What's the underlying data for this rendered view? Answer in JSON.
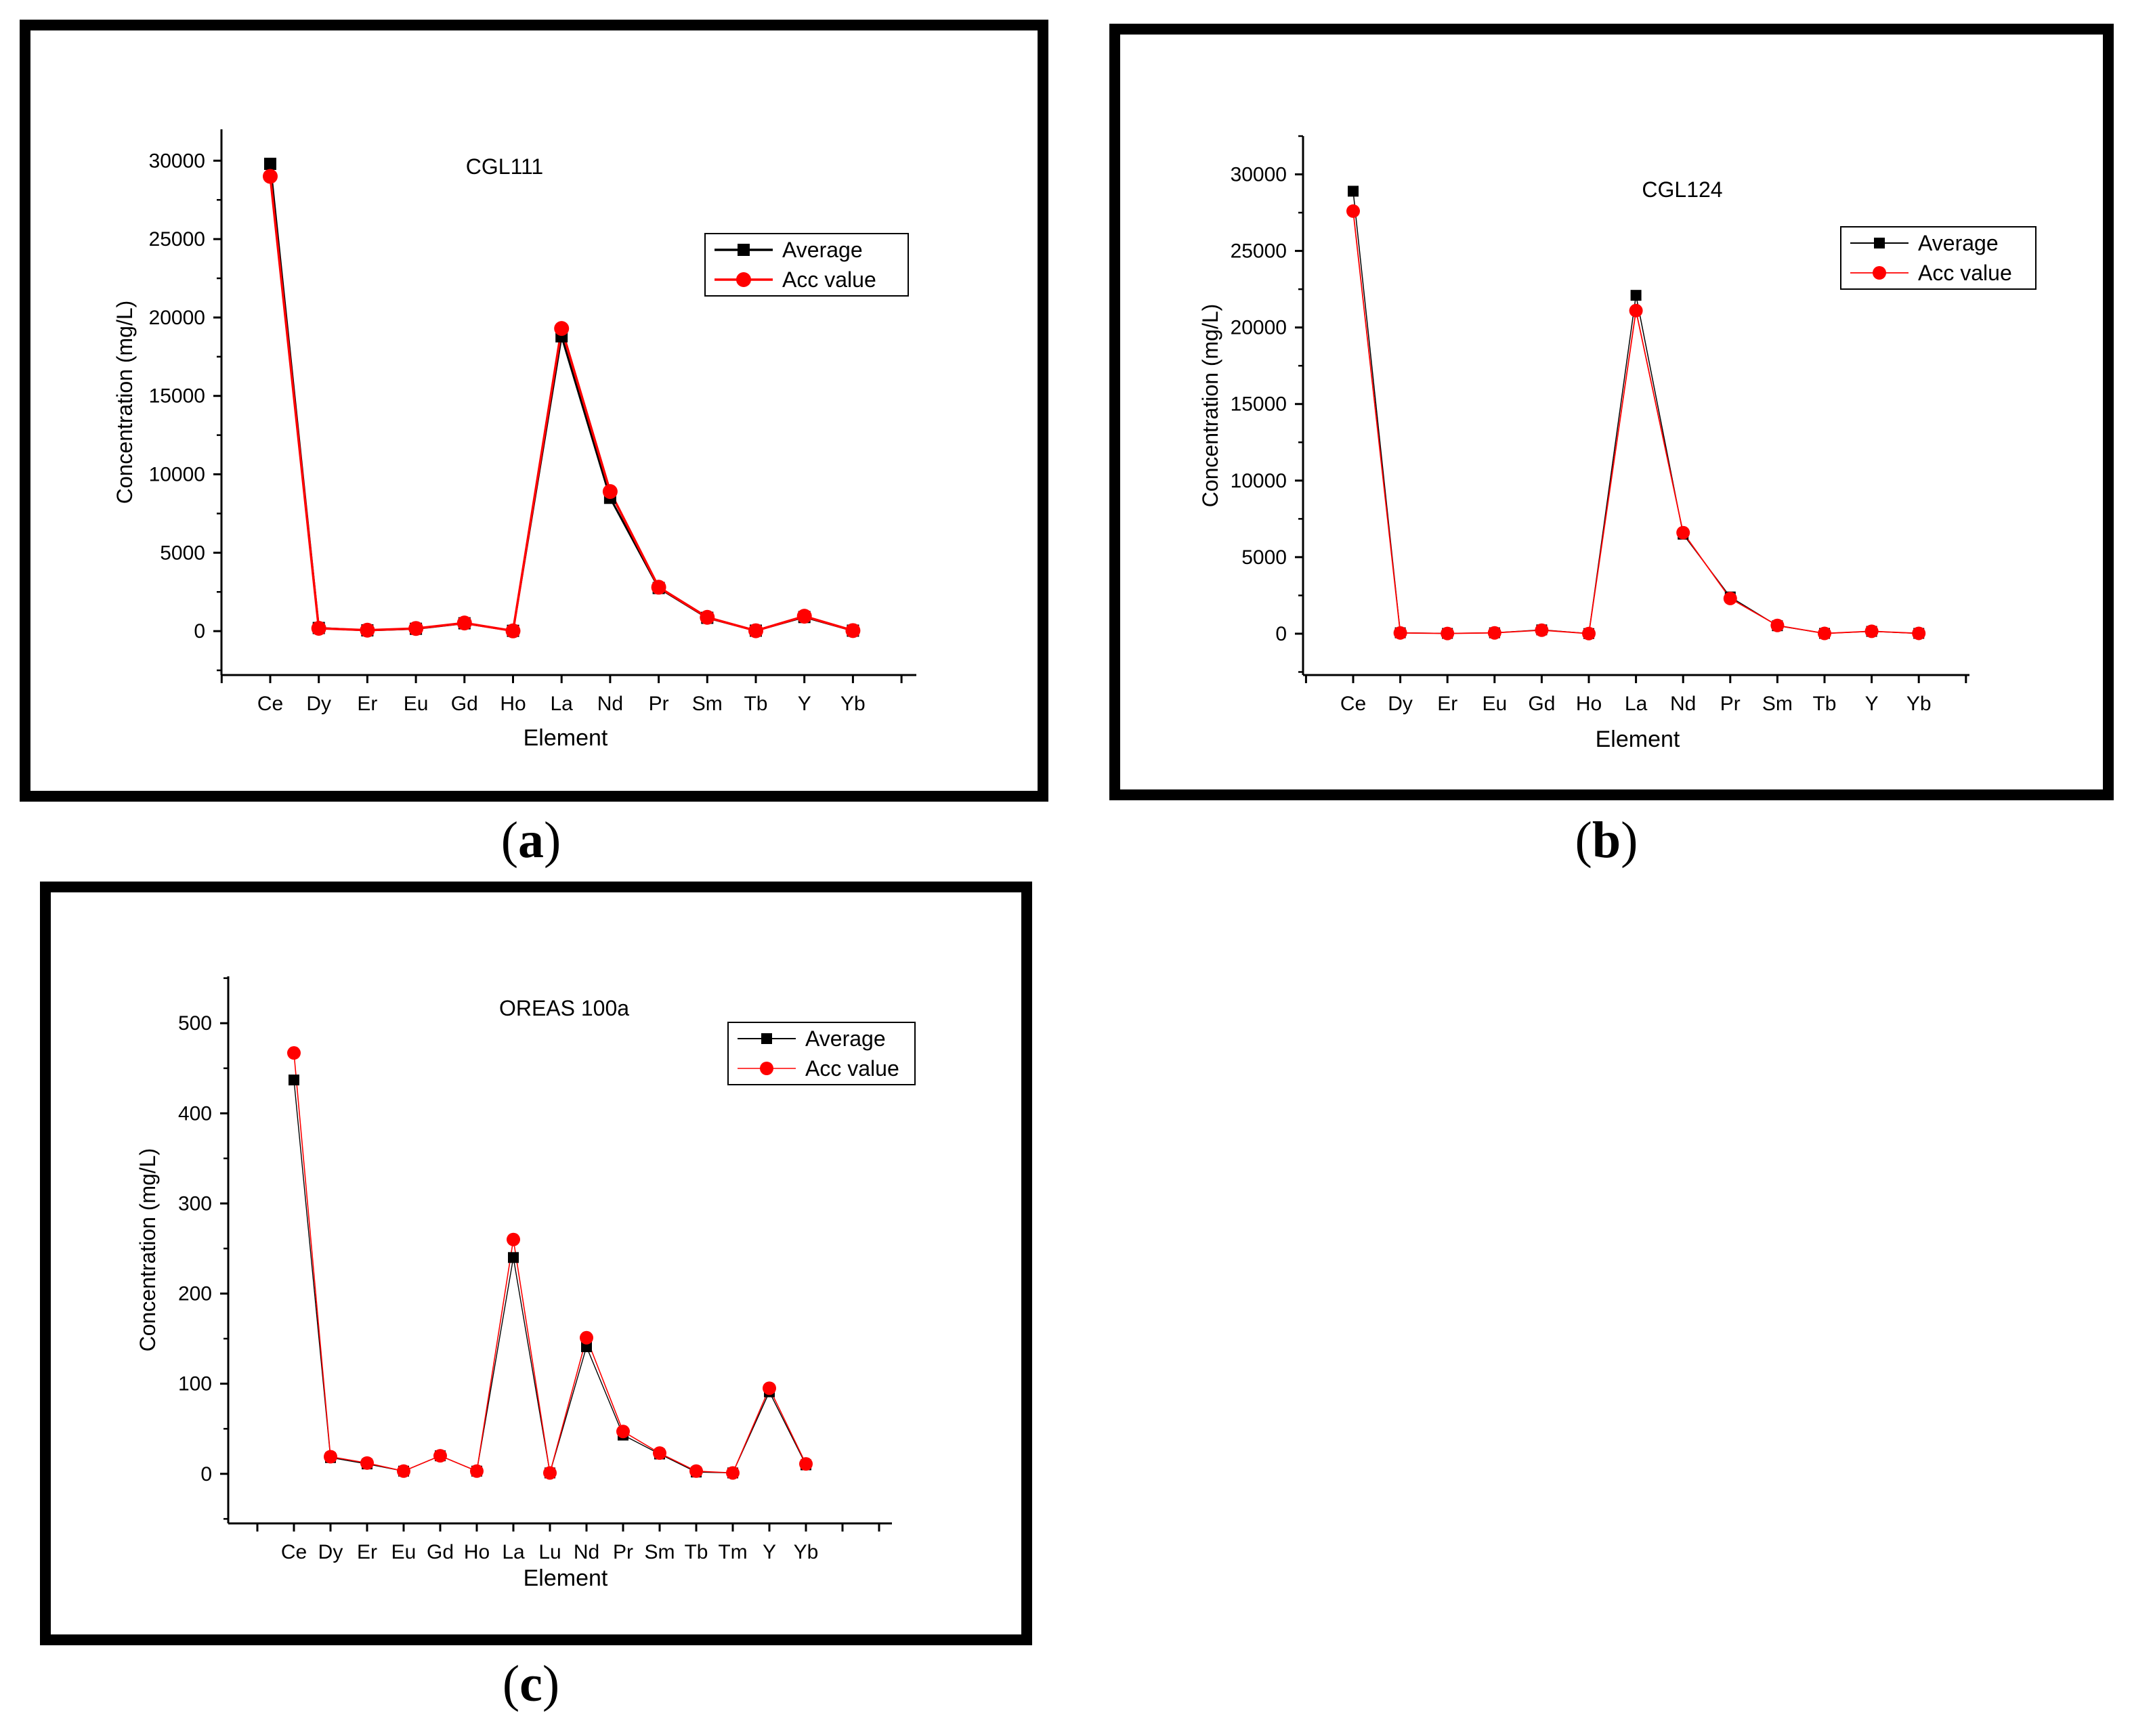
{
  "colors": {
    "average": "#000000",
    "acc": "#ff0000",
    "frame": "#000000"
  },
  "captions": [
    {
      "open": "(",
      "letter": "a",
      "close": ")"
    },
    {
      "open": "(",
      "letter": "b",
      "close": ")"
    },
    {
      "open": "(",
      "letter": "c",
      "close": ")"
    }
  ],
  "chart_data": [
    {
      "type": "line",
      "title": "CGL111",
      "xlabel": "Element",
      "ylabel": "Concentration (mg/L)",
      "ylim": [
        -2800,
        32000
      ],
      "yticks": [
        0,
        5000,
        10000,
        15000,
        20000,
        25000,
        30000
      ],
      "ytick_labels": [
        "0",
        "5000",
        "10000",
        "15000",
        "20000",
        "25000",
        "30000"
      ],
      "categories": [
        "Ce",
        "Dy",
        "Er",
        "Eu",
        "Gd",
        "Ho",
        "La",
        "Nd",
        "Pr",
        "Sm",
        "Tb",
        "Y",
        "Yb"
      ],
      "legend": [
        "Average",
        "Acc value"
      ],
      "legend_position": "top-right",
      "series": [
        {
          "name": "Average",
          "values": [
            29800,
            200,
            50,
            150,
            500,
            20,
            18800,
            8500,
            2750,
            850,
            30,
            900,
            30
          ]
        },
        {
          "name": "Acc value",
          "values": [
            29000,
            180,
            60,
            170,
            520,
            15,
            19300,
            8900,
            2800,
            880,
            25,
            950,
            35
          ]
        }
      ]
    },
    {
      "type": "line",
      "title": "CGL124",
      "xlabel": "Element",
      "ylabel": "Concentration (mg/L)",
      "ylim": [
        -2700,
        32500
      ],
      "yticks": [
        0,
        5000,
        10000,
        15000,
        20000,
        25000,
        30000
      ],
      "ytick_labels": [
        "0",
        "5000",
        "10000",
        "15000",
        "20000",
        "25000",
        "30000"
      ],
      "categories": [
        "Ce",
        "Dy",
        "Er",
        "Eu",
        "Gd",
        "Ho",
        "La",
        "Nd",
        "Pr",
        "Sm",
        "Tb",
        "Y",
        "Yb"
      ],
      "legend": [
        "Average",
        "Acc value"
      ],
      "legend_position": "top-right",
      "series": [
        {
          "name": "Average",
          "values": [
            28900,
            60,
            20,
            60,
            250,
            10,
            22100,
            6500,
            2400,
            520,
            20,
            150,
            20
          ]
        },
        {
          "name": "Acc value",
          "values": [
            27600,
            50,
            15,
            55,
            230,
            8,
            21100,
            6600,
            2300,
            540,
            18,
            160,
            22
          ]
        }
      ]
    },
    {
      "type": "line",
      "title": "OREAS 100a",
      "xlabel": "Element",
      "ylabel": "Concentration (mg/L)",
      "ylim": [
        -55,
        552
      ],
      "yticks": [
        0,
        100,
        200,
        300,
        400,
        500
      ],
      "ytick_labels": [
        "0",
        "100",
        "200",
        "300",
        "400",
        "500"
      ],
      "categories": [
        "Ce",
        "Dy",
        "Er",
        "Eu",
        "Gd",
        "Ho",
        "La",
        "Lu",
        "Nd",
        "Pr",
        "Sm",
        "Tb",
        "Tm",
        "Y",
        "Yb"
      ],
      "legend": [
        "Average",
        "Acc value"
      ],
      "legend_position": "top-right",
      "series": [
        {
          "name": "Average",
          "values": [
            437,
            18,
            11,
            3,
            20,
            3,
            240,
            1,
            141,
            43,
            22,
            2,
            1,
            91,
            10
          ]
        },
        {
          "name": "Acc value",
          "values": [
            467,
            19,
            12,
            3,
            20,
            3,
            260,
            1,
            151,
            47,
            23,
            3,
            1,
            95,
            11
          ]
        }
      ]
    }
  ]
}
